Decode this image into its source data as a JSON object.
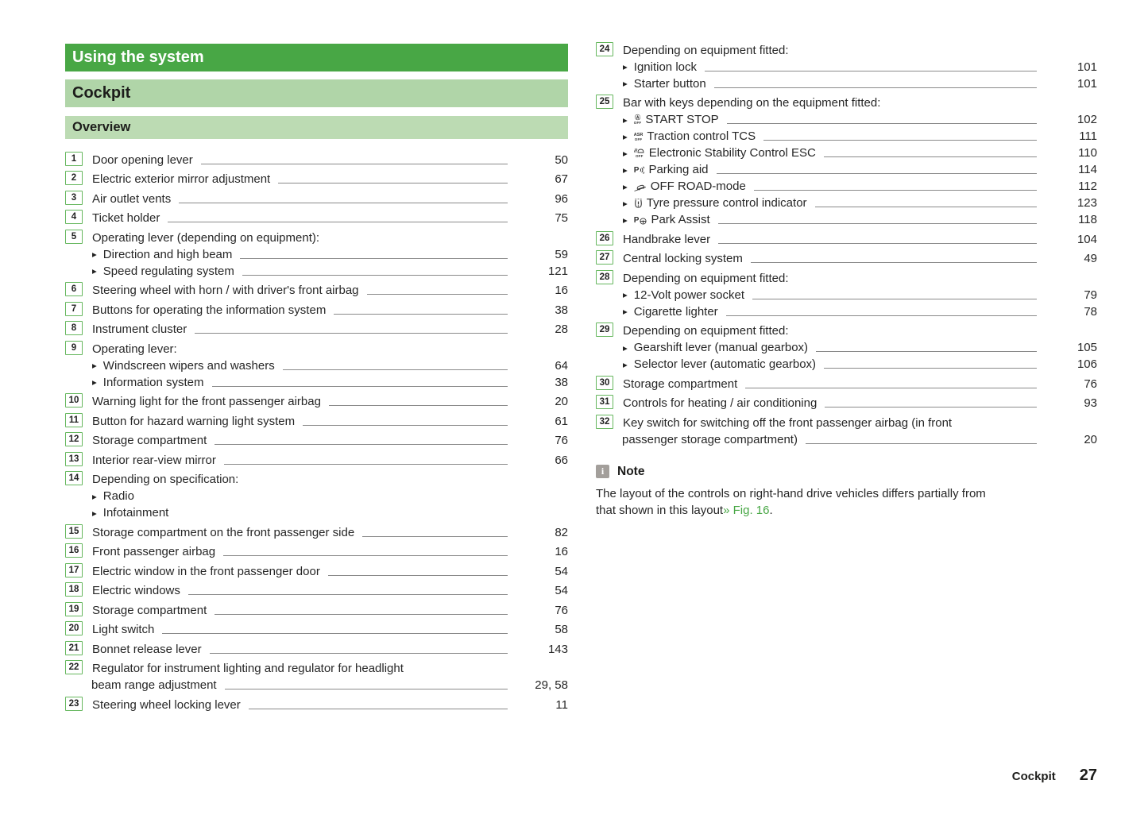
{
  "header": {
    "title": "Using the system",
    "section": "Cockpit",
    "subsection": "Overview"
  },
  "bullet_glyph": "▶",
  "colors": {
    "primary_green": "#48a745",
    "section_band": "#b0d5a8",
    "subsection_band": "#bcdbb3",
    "badge_border": "#66b75e",
    "link_green": "#48a745",
    "note_icon_bg": "#a39f9b"
  },
  "icons": {
    "start_stop": {
      "top": "Ⓐ",
      "bottom": "OFF"
    },
    "asr": {
      "top": "ASR",
      "bottom": "OFF"
    },
    "esc": {
      "bottom": "OFF"
    }
  },
  "left_items": [
    {
      "num": "1",
      "label": "Door opening lever",
      "page": "50"
    },
    {
      "num": "2",
      "label": "Electric exterior mirror adjustment",
      "page": "67"
    },
    {
      "num": "3",
      "label": "Air outlet vents",
      "page": "96"
    },
    {
      "num": "4",
      "label": "Ticket holder",
      "page": "75"
    },
    {
      "num": "5",
      "label": "Operating lever (depending on equipment):",
      "subs": [
        {
          "label": "Direction and high beam",
          "page": "59"
        },
        {
          "label": "Speed regulating system",
          "page": "121"
        }
      ]
    },
    {
      "num": "6",
      "label": "Steering wheel with horn / with driver's front airbag",
      "page": "16"
    },
    {
      "num": "7",
      "label": "Buttons for operating the information system",
      "page": "38"
    },
    {
      "num": "8",
      "label": "Instrument cluster",
      "page": "28"
    },
    {
      "num": "9",
      "label": "Operating lever:",
      "subs": [
        {
          "label": "Windscreen wipers and washers",
          "page": "64"
        },
        {
          "label": "Information system",
          "page": "38"
        }
      ]
    },
    {
      "num": "10",
      "label": "Warning light for the front passenger airbag",
      "page": "20"
    },
    {
      "num": "11",
      "label": "Button for hazard warning light system",
      "page": "61"
    },
    {
      "num": "12",
      "label": "Storage compartment",
      "page": "76"
    },
    {
      "num": "13",
      "label": "Interior rear-view mirror",
      "page": "66"
    },
    {
      "num": "14",
      "label": "Depending on specification:",
      "subs": [
        {
          "label": "Radio"
        },
        {
          "label": "Infotainment"
        }
      ]
    },
    {
      "num": "15",
      "label": "Storage compartment on the front passenger side",
      "page": "82"
    },
    {
      "num": "16",
      "label": "Front passenger airbag",
      "page": "16"
    },
    {
      "num": "17",
      "label": "Electric window in the front passenger door",
      "page": "54"
    },
    {
      "num": "18",
      "label": "Electric windows",
      "page": "54"
    },
    {
      "num": "19",
      "label": "Storage compartment",
      "page": "76"
    },
    {
      "num": "20",
      "label": "Light switch",
      "page": "58"
    },
    {
      "num": "21",
      "label": "Bonnet release lever",
      "page": "143"
    },
    {
      "num": "22",
      "label": "Regulator for instrument lighting and regulator for headlight",
      "label2": "beam range adjustment",
      "page": "29, 58"
    },
    {
      "num": "23",
      "label": "Steering wheel locking lever",
      "page": "11"
    }
  ],
  "right_items": [
    {
      "num": "24",
      "label": "Depending on equipment fitted:",
      "subs": [
        {
          "label": "Ignition lock",
          "page": "101"
        },
        {
          "label": "Starter button",
          "page": "101"
        }
      ]
    },
    {
      "num": "25",
      "label": "Bar with keys depending on the equipment fitted:",
      "subs": [
        {
          "icon": "start-stop-off-icon",
          "label": "START STOP",
          "page": "102"
        },
        {
          "icon": "asr-off-icon",
          "label": "Traction control TCS",
          "page": "111"
        },
        {
          "icon": "esc-off-icon",
          "label": "Electronic Stability Control ESC",
          "page": "110"
        },
        {
          "icon": "parking-aid-icon",
          "label": "Parking aid",
          "page": "114"
        },
        {
          "icon": "offroad-mode-icon",
          "label": "OFF ROAD-mode",
          "page": "112"
        },
        {
          "icon": "tyre-pressure-icon",
          "label": "Tyre pressure control indicator",
          "page": "123"
        },
        {
          "icon": "park-assist-icon",
          "label": "Park Assist",
          "page": "118"
        }
      ]
    },
    {
      "num": "26",
      "label": "Handbrake lever",
      "page": "104"
    },
    {
      "num": "27",
      "label": "Central locking system",
      "page": "49"
    },
    {
      "num": "28",
      "label": "Depending on equipment fitted:",
      "subs": [
        {
          "label": "12-Volt power socket",
          "page": "79"
        },
        {
          "label": "Cigarette lighter",
          "page": "78"
        }
      ]
    },
    {
      "num": "29",
      "label": "Depending on equipment fitted:",
      "subs": [
        {
          "label": "Gearshift lever (manual gearbox)",
          "page": "105"
        },
        {
          "label": "Selector lever (automatic gearbox)",
          "page": "106"
        }
      ]
    },
    {
      "num": "30",
      "label": "Storage compartment",
      "page": "76"
    },
    {
      "num": "31",
      "label": "Controls for heating / air conditioning",
      "page": "93"
    },
    {
      "num": "32",
      "label": "Key switch for switching off the front passenger airbag (in front",
      "label2": "passenger storage compartment)",
      "page": "20"
    }
  ],
  "note": {
    "icon_glyph": "i",
    "title": "Note",
    "lines": [
      "The layout of the controls on right-hand drive vehicles differs partially from",
      "that shown in this layout"
    ],
    "link": "» Fig. 16",
    "suffix": "."
  },
  "footer": {
    "section": "Cockpit",
    "page": "27"
  }
}
